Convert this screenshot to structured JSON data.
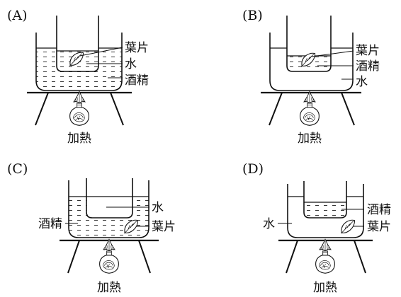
{
  "panels": [
    {
      "option": "(A)",
      "labels": {
        "leaf": "葉片",
        "inner": "水",
        "outer": "酒精",
        "heat": "加熱"
      },
      "leaf_location": "inner beaker"
    },
    {
      "option": "(B)",
      "labels": {
        "leaf": "葉片",
        "inner": "酒精",
        "outer": "水",
        "heat": "加熱"
      },
      "leaf_location": "inner beaker"
    },
    {
      "option": "(C)",
      "labels": {
        "inner": "水",
        "outer": "酒精",
        "leaf": "葉片",
        "heat": "加熱"
      },
      "leaf_location": "outer beaker"
    },
    {
      "option": "(D)",
      "labels": {
        "inner": "酒精",
        "outer": "水",
        "leaf": "葉片",
        "heat": "加熱"
      },
      "leaf_location": "outer beaker"
    }
  ]
}
